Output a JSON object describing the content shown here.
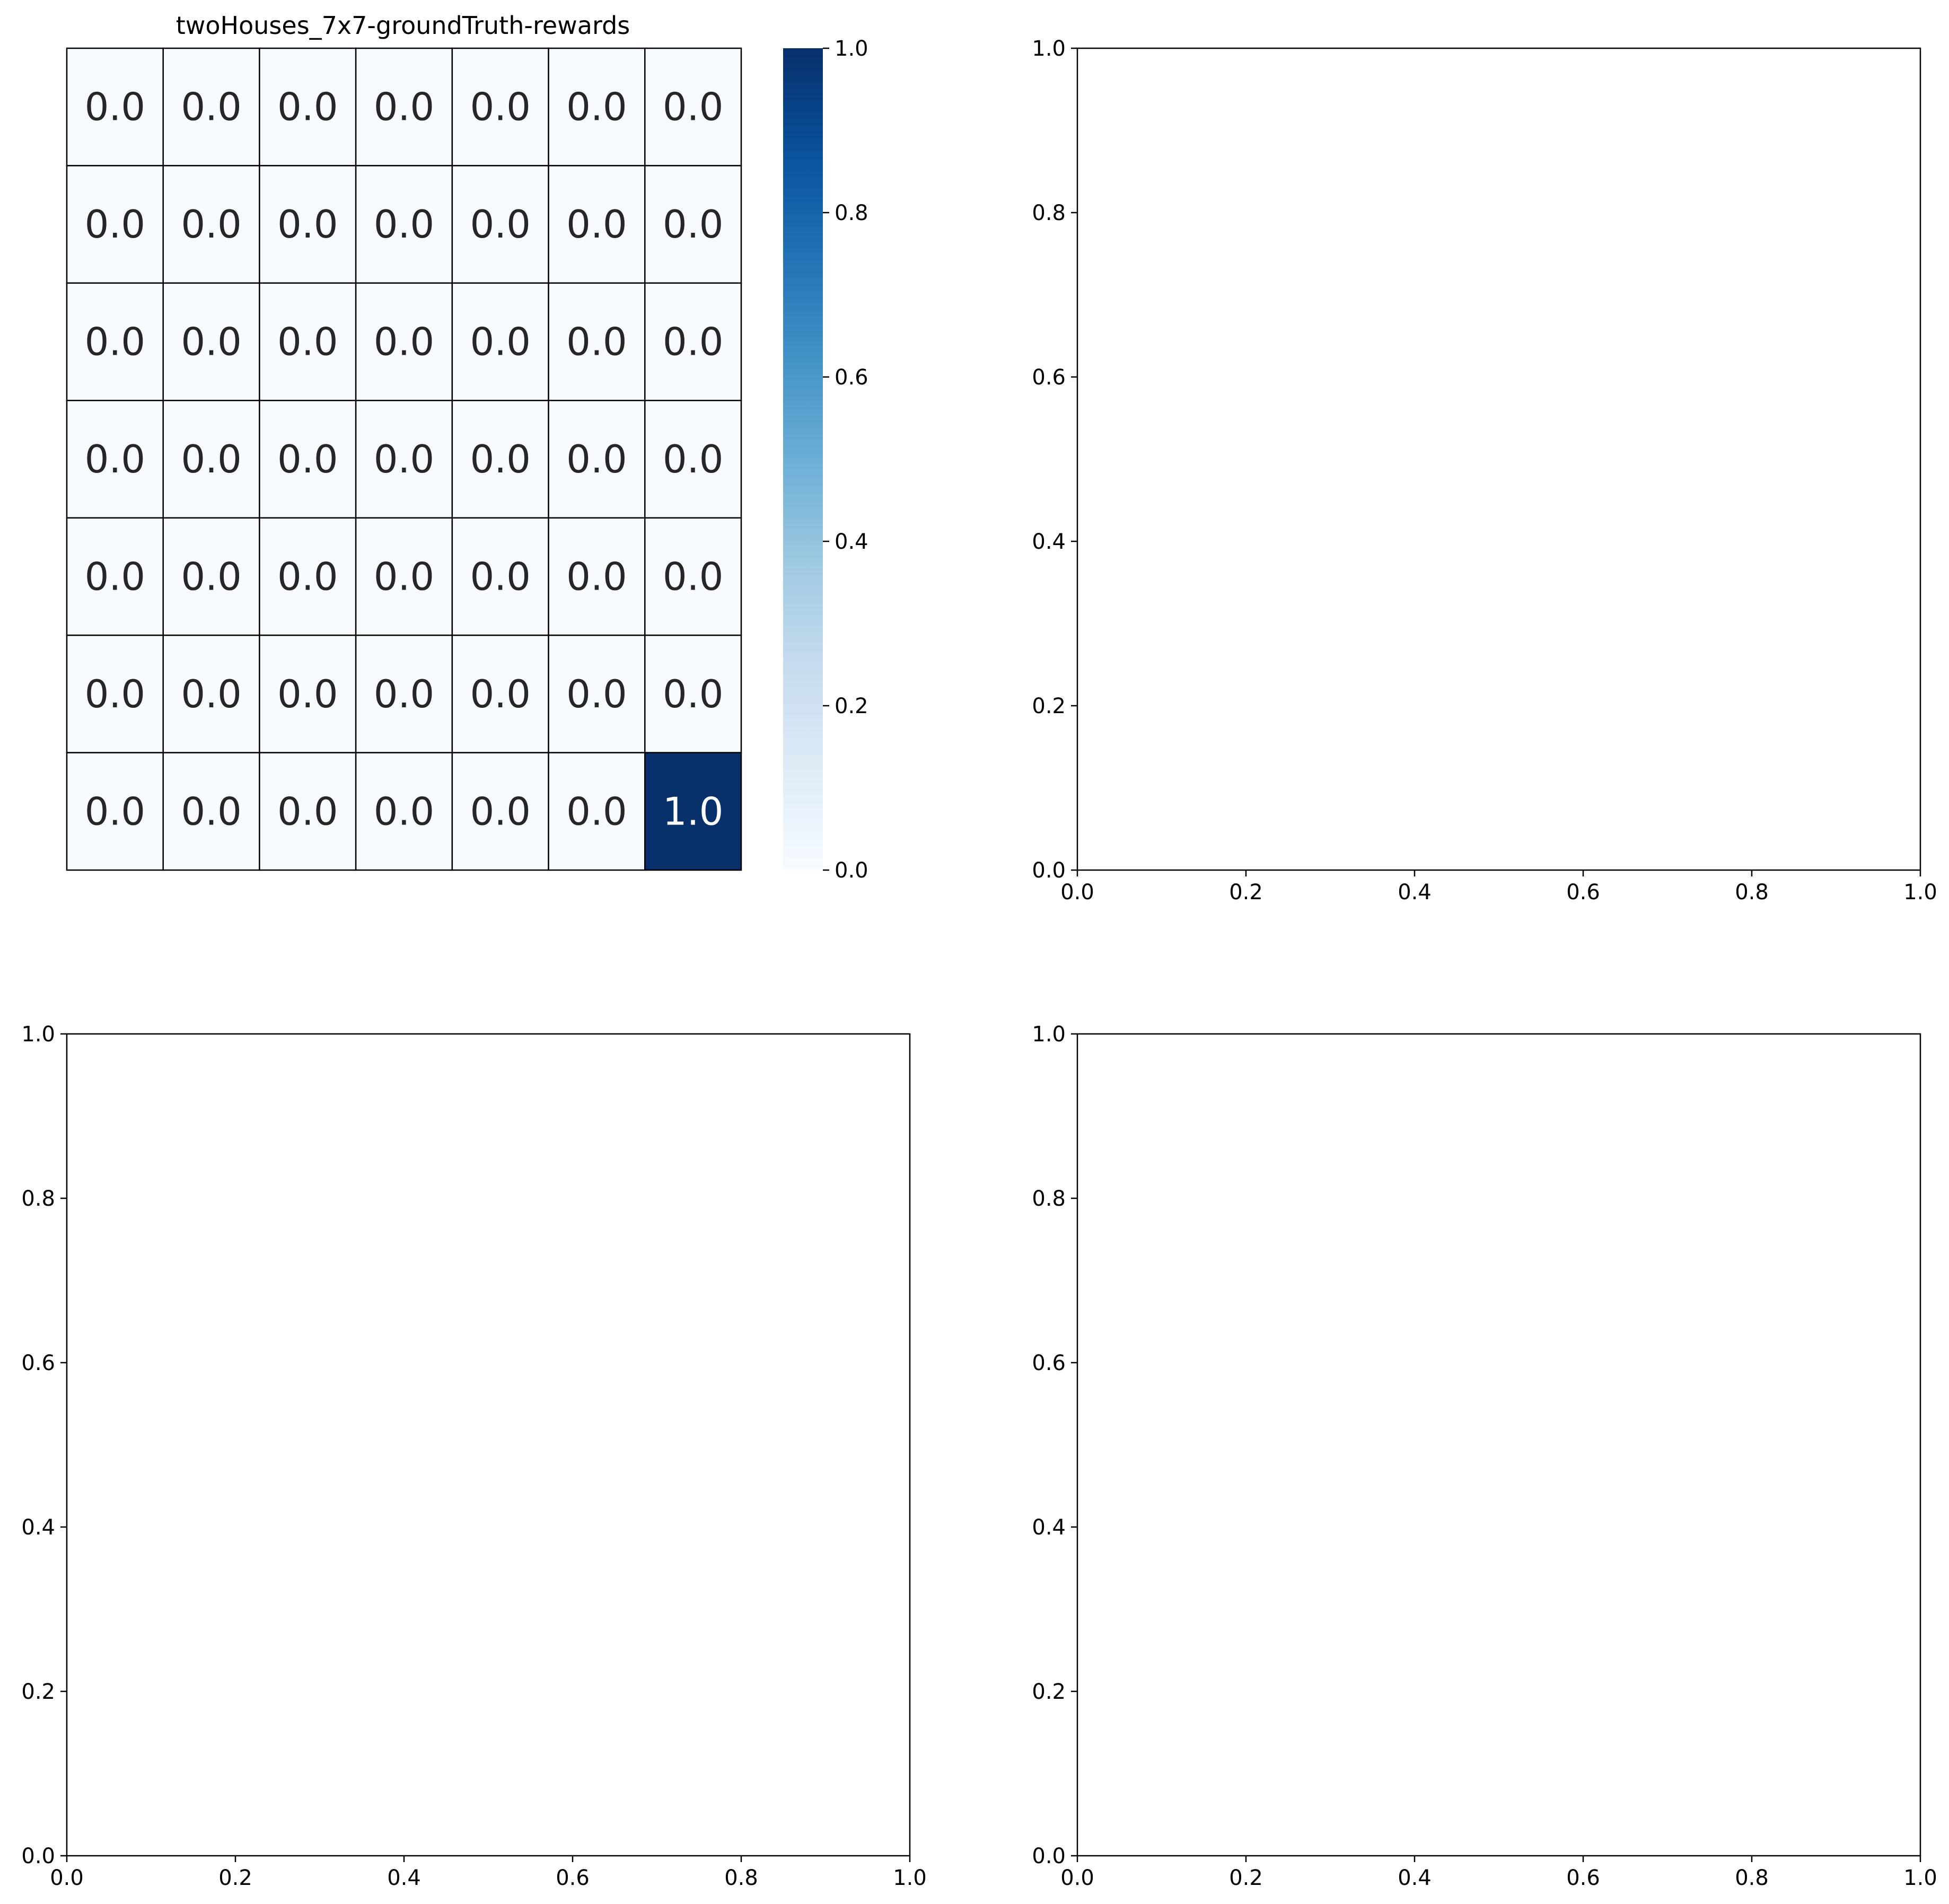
{
  "chart_data": [
    {
      "type": "heatmap",
      "title": "twoHouses_7x7-groundTruth-rewards",
      "colormap": "Blues",
      "rows": 7,
      "cols": 7,
      "values": [
        [
          0.0,
          0.0,
          0.0,
          0.0,
          0.0,
          0.0,
          0.0
        ],
        [
          0.0,
          0.0,
          0.0,
          0.0,
          0.0,
          0.0,
          0.0
        ],
        [
          0.0,
          0.0,
          0.0,
          0.0,
          0.0,
          0.0,
          0.0
        ],
        [
          0.0,
          0.0,
          0.0,
          0.0,
          0.0,
          0.0,
          0.0
        ],
        [
          0.0,
          0.0,
          0.0,
          0.0,
          0.0,
          0.0,
          0.0
        ],
        [
          0.0,
          0.0,
          0.0,
          0.0,
          0.0,
          0.0,
          0.0
        ],
        [
          0.0,
          0.0,
          0.0,
          0.0,
          0.0,
          0.0,
          1.0
        ]
      ],
      "cell_labels": [
        [
          "0.0",
          "0.0",
          "0.0",
          "0.0",
          "0.0",
          "0.0",
          "0.0"
        ],
        [
          "0.0",
          "0.0",
          "0.0",
          "0.0",
          "0.0",
          "0.0",
          "0.0"
        ],
        [
          "0.0",
          "0.0",
          "0.0",
          "0.0",
          "0.0",
          "0.0",
          "0.0"
        ],
        [
          "0.0",
          "0.0",
          "0.0",
          "0.0",
          "0.0",
          "0.0",
          "0.0"
        ],
        [
          "0.0",
          "0.0",
          "0.0",
          "0.0",
          "0.0",
          "0.0",
          "0.0"
        ],
        [
          "0.0",
          "0.0",
          "0.0",
          "0.0",
          "0.0",
          "0.0",
          "0.0"
        ],
        [
          "0.0",
          "0.0",
          "0.0",
          "0.0",
          "0.0",
          "0.0",
          "1.0"
        ]
      ],
      "colorbar": {
        "range": [
          0.0,
          1.0
        ],
        "ticks": [
          0.0,
          0.2,
          0.4,
          0.6,
          0.8,
          1.0
        ],
        "tick_labels": [
          "0.0",
          "0.2",
          "0.4",
          "0.6",
          "0.8",
          "1.0"
        ]
      }
    },
    {
      "type": "line",
      "title": "",
      "series": [],
      "xlim": [
        0.0,
        1.0
      ],
      "ylim": [
        0.0,
        1.0
      ],
      "xticks": [
        0.0,
        0.2,
        0.4,
        0.6,
        0.8,
        1.0
      ],
      "yticks": [
        0.0,
        0.2,
        0.4,
        0.6,
        0.8,
        1.0
      ],
      "xtick_labels": [
        "0.0",
        "0.2",
        "0.4",
        "0.6",
        "0.8",
        "1.0"
      ],
      "ytick_labels": [
        "0.0",
        "0.2",
        "0.4",
        "0.6",
        "0.8",
        "1.0"
      ]
    },
    {
      "type": "line",
      "title": "",
      "series": [],
      "xlim": [
        0.0,
        1.0
      ],
      "ylim": [
        0.0,
        1.0
      ],
      "xticks": [
        0.0,
        0.2,
        0.4,
        0.6,
        0.8,
        1.0
      ],
      "yticks": [
        0.0,
        0.2,
        0.4,
        0.6,
        0.8,
        1.0
      ],
      "xtick_labels": [
        "0.0",
        "0.2",
        "0.4",
        "0.6",
        "0.8",
        "1.0"
      ],
      "ytick_labels": [
        "0.0",
        "0.2",
        "0.4",
        "0.6",
        "0.8",
        "1.0"
      ]
    },
    {
      "type": "line",
      "title": "",
      "series": [],
      "xlim": [
        0.0,
        1.0
      ],
      "ylim": [
        0.0,
        1.0
      ],
      "xticks": [
        0.0,
        0.2,
        0.4,
        0.6,
        0.8,
        1.0
      ],
      "yticks": [
        0.0,
        0.2,
        0.4,
        0.6,
        0.8,
        1.0
      ],
      "xtick_labels": [
        "0.0",
        "0.2",
        "0.4",
        "0.6",
        "0.8",
        "1.0"
      ],
      "ytick_labels": [
        "0.0",
        "0.2",
        "0.4",
        "0.6",
        "0.8",
        "1.0"
      ]
    }
  ]
}
